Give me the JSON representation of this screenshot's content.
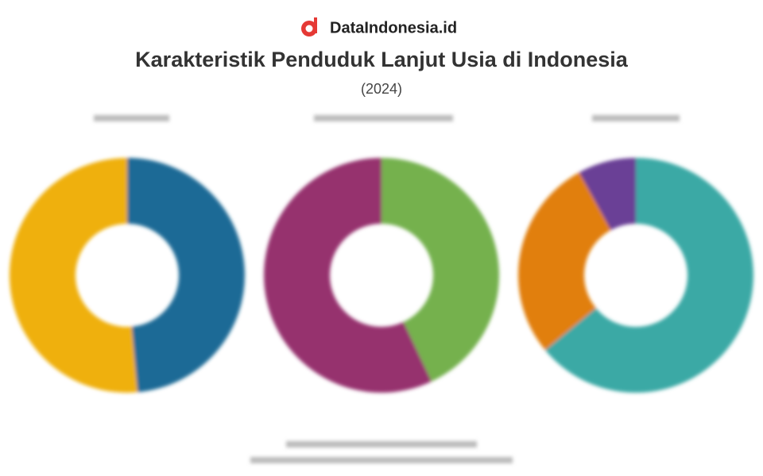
{
  "header": {
    "brand": "DataIndonesia.id",
    "title": "Karakteristik Penduduk Lanjut Usia di Indonesia",
    "subtitle": "(2024)"
  },
  "chart_data": [
    {
      "type": "donut",
      "values": [
        48.6,
        51.4
      ],
      "colors": [
        "#1f6b96",
        "#efb011"
      ]
    },
    {
      "type": "donut",
      "values": [
        43,
        57
      ],
      "colors": [
        "#74b14d",
        "#96336e"
      ]
    },
    {
      "type": "donut",
      "values": [
        64,
        28,
        8
      ],
      "colors": [
        "#3aa9a5",
        "#e17f0c",
        "#6b3f96"
      ]
    }
  ]
}
